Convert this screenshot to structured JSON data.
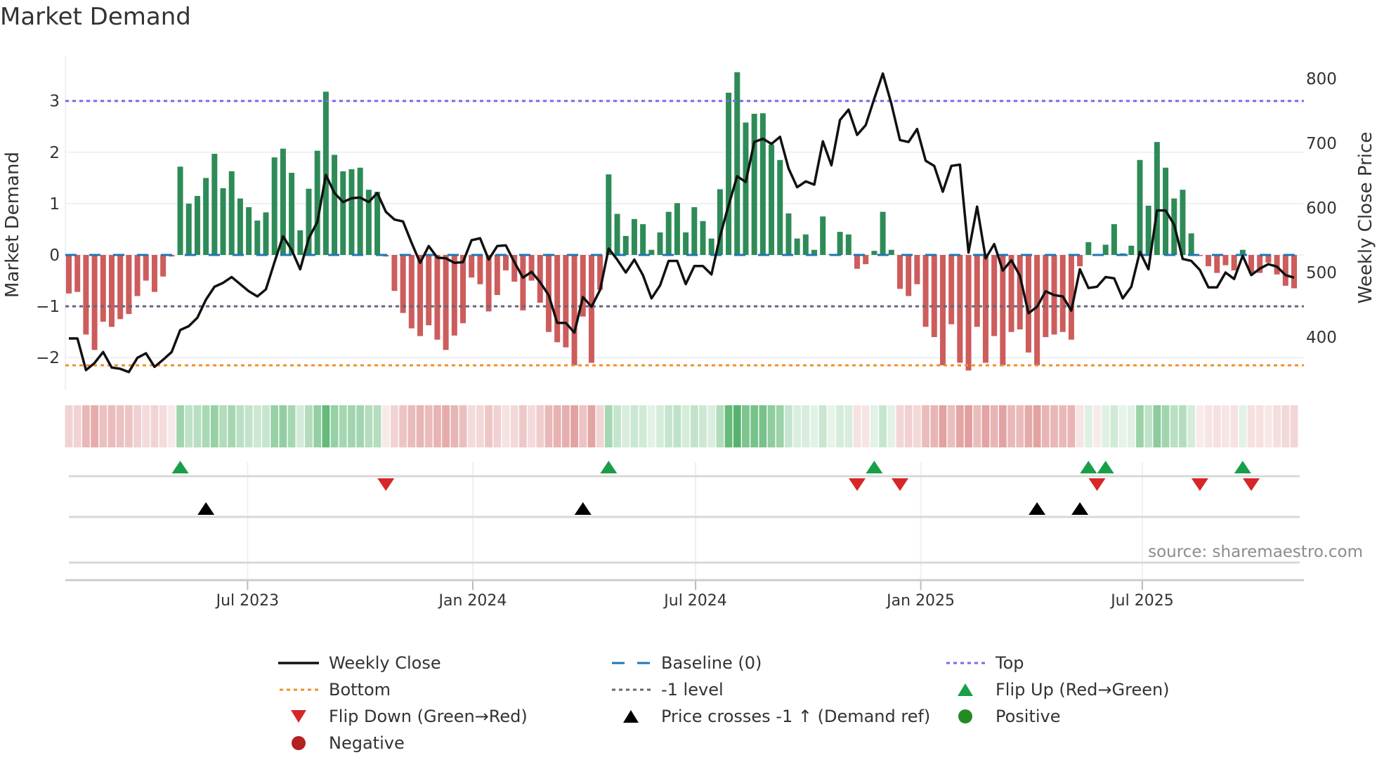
{
  "title": "Market Demand",
  "source": "source: sharemaestro.com",
  "chart_data": {
    "type": "bar+line",
    "title": "Market Demand",
    "ylabel": "Market Demand",
    "y2label": "Weekly Close Price",
    "ylim": [
      -2.55,
      3.9
    ],
    "y2lim": [
      330,
      840
    ],
    "yticks": [
      "3",
      "2",
      "1",
      "0",
      "−1",
      "−2"
    ],
    "ytick_values": [
      3,
      2,
      1,
      0,
      -1,
      -2
    ],
    "y2ticks": [
      "800",
      "700",
      "600",
      "500",
      "400"
    ],
    "y2tick_values": [
      800,
      700,
      600,
      500,
      400
    ],
    "start_date": "2023-02-05",
    "frequency": "weekly",
    "xticks": [
      {
        "label": "Jul 2023",
        "date": "2023-07-01"
      },
      {
        "label": "Jan 2024",
        "date": "2024-01-01"
      },
      {
        "label": "Jul 2024",
        "date": "2024-07-01"
      },
      {
        "label": "Jan 2025",
        "date": "2025-01-01"
      },
      {
        "label": "Jul 2025",
        "date": "2025-07-01"
      }
    ],
    "levels": {
      "top": 3.0,
      "bottom": -2.15,
      "minus_one": -1.0,
      "baseline": 0
    },
    "demand": [
      -0.75,
      -0.72,
      -1.55,
      -1.85,
      -1.3,
      -1.4,
      -1.25,
      -1.15,
      -0.8,
      -0.5,
      -0.72,
      -0.42,
      -0.03,
      1.72,
      1.0,
      1.15,
      1.5,
      1.97,
      1.3,
      1.63,
      1.1,
      0.93,
      0.67,
      0.83,
      1.9,
      2.07,
      1.6,
      0.48,
      1.29,
      2.03,
      3.18,
      1.95,
      1.63,
      1.67,
      1.7,
      1.27,
      1.23,
      -0.03,
      -0.7,
      -1.13,
      -1.43,
      -1.58,
      -1.37,
      -1.65,
      -1.85,
      -1.57,
      -1.33,
      -0.44,
      -0.57,
      -1.1,
      -0.78,
      -0.3,
      -0.52,
      -1.08,
      -0.5,
      -0.93,
      -1.5,
      -1.7,
      -1.8,
      -2.15,
      -1.2,
      -2.1,
      -0.68,
      1.57,
      0.8,
      0.37,
      0.7,
      0.6,
      0.1,
      0.44,
      0.84,
      1.01,
      0.44,
      0.93,
      0.66,
      0.32,
      1.28,
      3.16,
      3.56,
      2.58,
      2.75,
      2.76,
      2.15,
      1.85,
      0.81,
      0.32,
      0.4,
      0.1,
      0.75,
      0.02,
      0.45,
      0.4,
      -0.27,
      -0.18,
      0.08,
      0.84,
      0.1,
      -0.66,
      -0.8,
      -0.57,
      -1.4,
      -1.6,
      -2.15,
      -1.35,
      -2.1,
      -2.25,
      -1.4,
      -2.1,
      -1.58,
      -2.15,
      -1.5,
      -1.45,
      -1.9,
      -2.15,
      -1.6,
      -1.55,
      -1.5,
      -1.65,
      -0.22,
      0.25,
      -0.02,
      0.2,
      0.6,
      0.03,
      0.18,
      1.85,
      0.96,
      2.2,
      1.7,
      1.1,
      1.27,
      0.42,
      -0.02,
      -0.22,
      -0.35,
      -0.2,
      -0.3,
      0.1,
      -0.35,
      -0.35,
      -0.15,
      -0.38,
      -0.6,
      -0.65
    ],
    "weekly_close": [
      398,
      398,
      349,
      360,
      377,
      353,
      351,
      346,
      368,
      375,
      354,
      365,
      377,
      411,
      417,
      430,
      458,
      478,
      484,
      493,
      482,
      471,
      463,
      474,
      516,
      556,
      535,
      505,
      553,
      578,
      651,
      623,
      609,
      615,
      616,
      609,
      623,
      594,
      582,
      579,
      546,
      515,
      541,
      523,
      522,
      515,
      516,
      550,
      553,
      520,
      541,
      542,
      516,
      492,
      501,
      485,
      465,
      422,
      422,
      407,
      462,
      447,
      473,
      537,
      520,
      500,
      520,
      496,
      460,
      480,
      518,
      518,
      482,
      510,
      510,
      497,
      556,
      604,
      649,
      640,
      702,
      707,
      699,
      710,
      661,
      632,
      641,
      636,
      703,
      666,
      736,
      752,
      713,
      728,
      769,
      808,
      761,
      705,
      702,
      722,
      673,
      665,
      625,
      665,
      667,
      531,
      602,
      522,
      544,
      503,
      519,
      495,
      437,
      447,
      471,
      465,
      463,
      441,
      505,
      476,
      478,
      493,
      491,
      460,
      478,
      532,
      505,
      596,
      596,
      574,
      521,
      518,
      504,
      477,
      477,
      500,
      490,
      526,
      496,
      506,
      513,
      509,
      496,
      492
    ],
    "flip_up_weeks": [
      13,
      63,
      94,
      119,
      121,
      137
    ],
    "flip_down_weeks": [
      37,
      92,
      97,
      120,
      132,
      138
    ],
    "price_cross_weeks": [
      16,
      60,
      113,
      118
    ],
    "colors": {
      "positive": "#2e8b57",
      "negative": "#cd5c5c",
      "line": "#111111",
      "baseline": "#1f77b4",
      "top": "#7b68ee",
      "bottom": "#f28e2b",
      "minus_one": "#666677",
      "flip_up": "#1a9e4a",
      "flip_down": "#d62728",
      "cross": "#000000",
      "pos_dot": "#228b22",
      "neg_dot": "#b22222"
    },
    "legend": [
      {
        "label": "Weekly Close",
        "kind": "line"
      },
      {
        "label": "Baseline (0)",
        "kind": "baseline"
      },
      {
        "label": "Top",
        "kind": "top"
      },
      {
        "label": "Bottom",
        "kind": "bottom"
      },
      {
        "label": "-1 level",
        "kind": "minus_one"
      },
      {
        "label": "Flip Up (Red→Green)",
        "kind": "flip_up"
      },
      {
        "label": "Flip Down (Green→Red)",
        "kind": "flip_down"
      },
      {
        "label": "Price crosses -1 ↑ (Demand ref)",
        "kind": "cross"
      },
      {
        "label": "Positive",
        "kind": "pos_dot"
      },
      {
        "label": "Negative",
        "kind": "neg_dot"
      }
    ],
    "legend_position": "bottom-center"
  }
}
